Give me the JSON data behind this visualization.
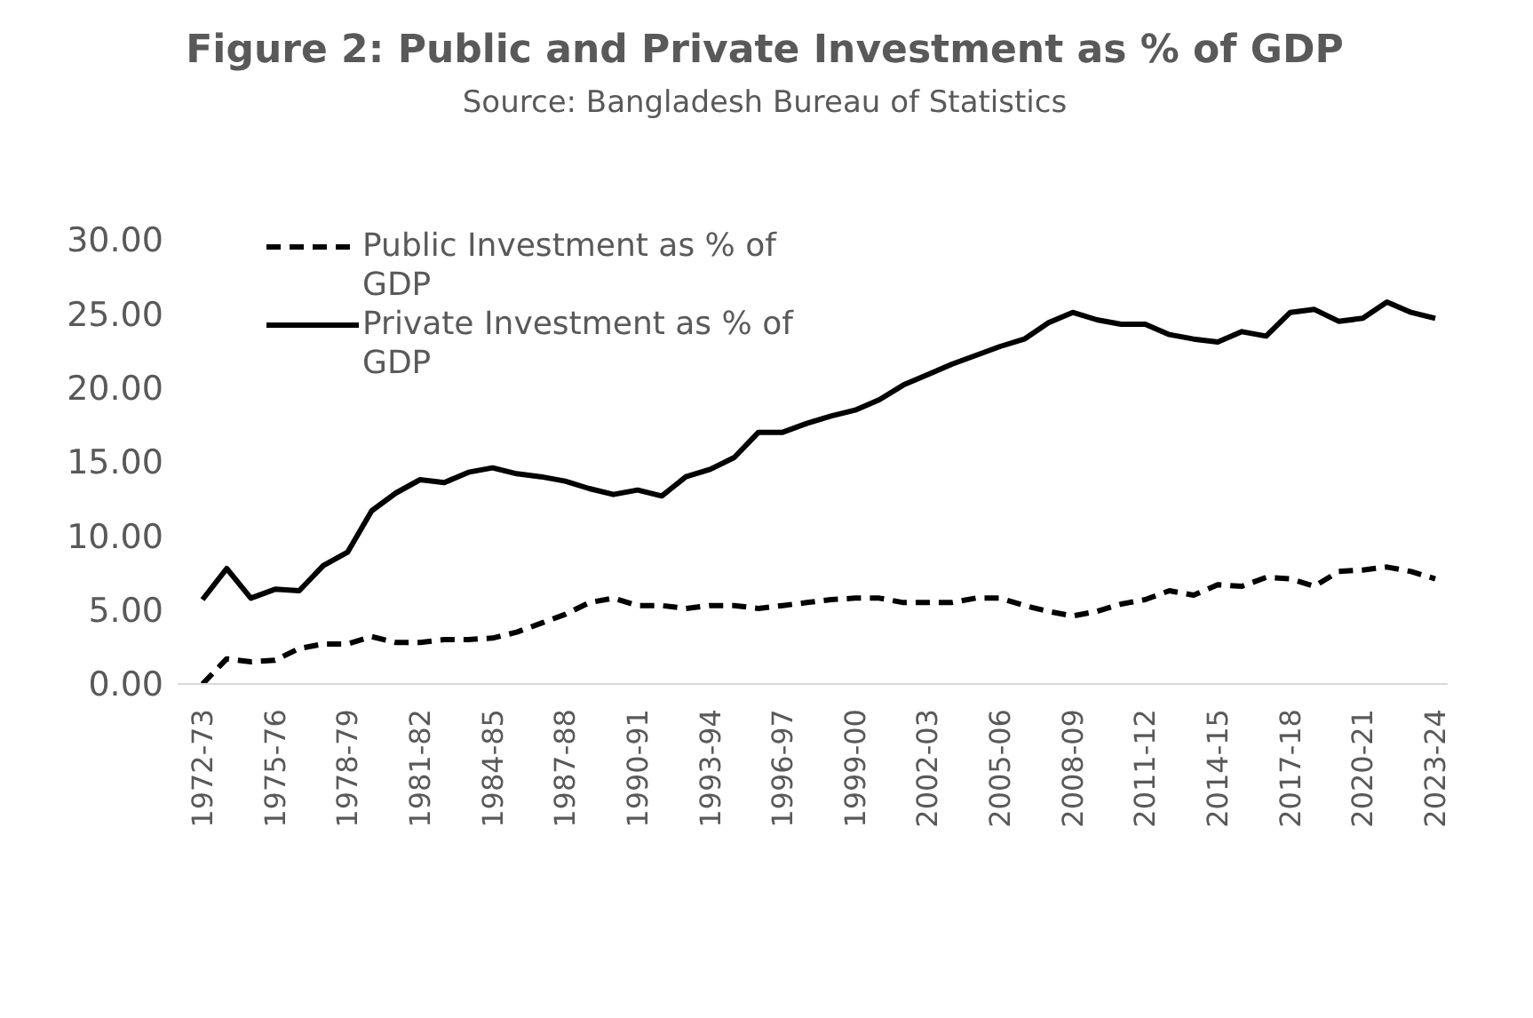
{
  "chart_data": {
    "type": "line",
    "title": "Figure 2: Public and Private Investment as % of GDP",
    "subtitle": "Source: Bangladesh Bureau of Statistics",
    "categories": [
      "1972-73",
      null,
      null,
      "1975-76",
      null,
      null,
      "1978-79",
      null,
      null,
      "1981-82",
      null,
      null,
      "1984-85",
      null,
      null,
      "1987-88",
      null,
      null,
      "1990-91",
      null,
      null,
      "1993-94",
      null,
      null,
      "1996-97",
      null,
      null,
      "1999-00",
      null,
      null,
      "2002-03",
      null,
      null,
      "2005-06",
      null,
      null,
      "2008-09",
      null,
      null,
      "2011-12",
      null,
      null,
      "2014-15",
      null,
      null,
      "2017-18",
      null,
      null,
      "2020-21",
      null,
      null,
      "2023-24"
    ],
    "series": [
      {
        "name": "Public Investment as % of GDP",
        "color": "#000000",
        "line_style": "dashed",
        "values": [
          0.0,
          1.7,
          1.5,
          1.6,
          2.4,
          2.7,
          2.7,
          3.2,
          2.8,
          2.8,
          3.0,
          3.0,
          3.1,
          3.5,
          4.1,
          4.7,
          5.5,
          5.8,
          5.3,
          5.3,
          5.1,
          5.3,
          5.3,
          5.1,
          5.3,
          5.5,
          5.7,
          5.8,
          5.8,
          5.5,
          5.5,
          5.5,
          5.8,
          5.8,
          5.3,
          4.9,
          4.6,
          4.9,
          5.4,
          5.7,
          6.3,
          6.0,
          6.7,
          6.6,
          7.2,
          7.1,
          6.6,
          7.6,
          7.7,
          7.9,
          7.6,
          7.1
        ]
      },
      {
        "name": "Private Investment as % of GDP",
        "color": "#000000",
        "line_style": "solid",
        "values": [
          5.7,
          7.8,
          5.8,
          6.4,
          6.3,
          8.0,
          8.9,
          11.7,
          12.9,
          13.8,
          13.6,
          14.3,
          14.6,
          14.2,
          14.0,
          13.7,
          13.2,
          12.8,
          13.1,
          12.7,
          14.0,
          14.5,
          15.3,
          17.0,
          17.0,
          17.6,
          18.1,
          18.5,
          19.2,
          20.2,
          20.9,
          21.6,
          22.2,
          22.8,
          23.3,
          24.4,
          25.1,
          24.6,
          24.3,
          24.3,
          23.6,
          23.3,
          23.1,
          23.8,
          23.5,
          25.1,
          25.3,
          24.5,
          24.7,
          25.8,
          25.1,
          24.7
        ]
      }
    ],
    "ylim": [
      0,
      30
    ],
    "yticks": [
      {
        "value": 0,
        "label": "0.00"
      },
      {
        "value": 5,
        "label": "5.00"
      },
      {
        "value": 10,
        "label": "10.00"
      },
      {
        "value": 15,
        "label": "15.00"
      },
      {
        "value": 20,
        "label": "20.00"
      },
      {
        "value": 25,
        "label": "25.00"
      },
      {
        "value": 30,
        "label": "30.00"
      }
    ],
    "grid": false,
    "legend": "top left",
    "marker": "none"
  }
}
